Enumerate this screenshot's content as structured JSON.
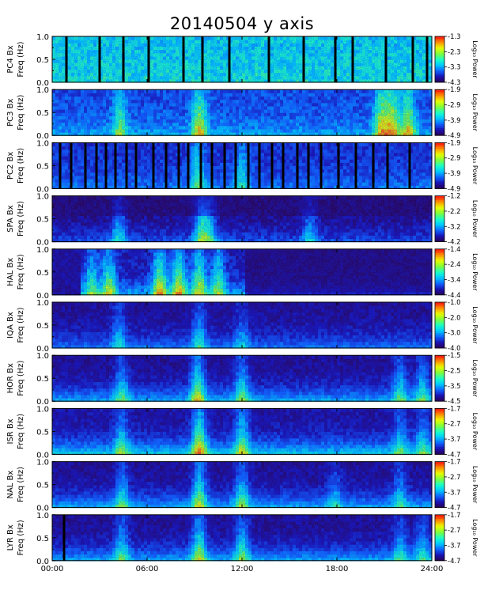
{
  "chart_data": {
    "type": "heatmap",
    "title": "20140504 y axis",
    "xlabel": "",
    "x_tick_labels": [
      "00:00",
      "06:00",
      "12:00",
      "18:00",
      "24:00"
    ],
    "x_ticks_hours": [
      0,
      6,
      12,
      18,
      24
    ],
    "xlim": [
      0,
      24
    ],
    "ylim": [
      0,
      1.0
    ],
    "y_tick_labels": [
      "0.0",
      "0.5",
      "1.0"
    ],
    "y_ticks": [
      0.0,
      0.5,
      1.0
    ],
    "colorbar_label": "Log₁₀ Power",
    "colormap": [
      "#2a0050",
      "#1a0fb0",
      "#1060ff",
      "#00c8ff",
      "#18ffc8",
      "#7cff3c",
      "#e8ff00",
      "#ff9000",
      "#ff1010"
    ],
    "panels": [
      {
        "station": "PC4",
        "ylabel_line1": "PC4 Bx",
        "ylabel_line2": "Freq (Hz)",
        "cbar_ticks": [
          "-1.3",
          "-2.3",
          "-3.3",
          "-4.3"
        ],
        "cbar_range": [
          -4.3,
          -1.3
        ],
        "gap_hours": [
          0.9,
          3.0,
          4.5,
          6.1,
          8.3,
          9.5,
          11.2,
          13.7,
          15.9,
          17.9,
          19.0,
          21.1,
          22.8,
          23.7
        ]
      },
      {
        "station": "PC3",
        "ylabel_line1": "PC3 Bx",
        "ylabel_line2": "Freq (Hz)",
        "cbar_ticks": [
          "-1.9",
          "-2.9",
          "-3.9",
          "-4.9"
        ],
        "cbar_range": [
          -4.9,
          -1.9
        ],
        "gap_hours": []
      },
      {
        "station": "PC2",
        "ylabel_line1": "PC2 Bx",
        "ylabel_line2": "Freq (Hz)",
        "cbar_ticks": [
          "-1.9",
          "-2.9",
          "-3.9",
          "-4.9"
        ],
        "cbar_range": [
          -4.9,
          -1.9
        ],
        "gap_hours": [
          0.5,
          1.2,
          2.1,
          2.8,
          3.4,
          4.0,
          4.7,
          5.3,
          6.4,
          7.2,
          8.0,
          8.6,
          9.4,
          10.1,
          10.9,
          11.6,
          12.4,
          13.1,
          13.9,
          14.6,
          15.5,
          16.2,
          17.0,
          18.1,
          19.2,
          20.3,
          21.2,
          22.6
        ]
      },
      {
        "station": "SPA",
        "ylabel_line1": "SPA Bx",
        "ylabel_line2": "Freq (Hz)",
        "cbar_ticks": [
          "-1.2",
          "-2.2",
          "-3.2",
          "-4.2"
        ],
        "cbar_range": [
          -4.2,
          -1.2
        ],
        "gap_hours": []
      },
      {
        "station": "HAL",
        "ylabel_line1": "HAL Bx",
        "ylabel_line2": "Freq (Hz)",
        "cbar_ticks": [
          "-1.4",
          "-2.4",
          "-3.4",
          "-4.4"
        ],
        "cbar_range": [
          -4.4,
          -1.4
        ],
        "gap_hours": []
      },
      {
        "station": "IQA",
        "ylabel_line1": "IQA Bx",
        "ylabel_line2": "Freq (Hz)",
        "cbar_ticks": [
          "-1.0",
          "-2.0",
          "-3.0",
          "-4.0"
        ],
        "cbar_range": [
          -4.0,
          -1.0
        ],
        "gap_hours": []
      },
      {
        "station": "HOR",
        "ylabel_line1": "HOR Bx",
        "ylabel_line2": "Freq (Hz)",
        "cbar_ticks": [
          "-1.5",
          "-2.5",
          "-3.5",
          "-4.5"
        ],
        "cbar_range": [
          -4.5,
          -1.5
        ],
        "gap_hours": []
      },
      {
        "station": "ISR",
        "ylabel_line1": "ISR Bx",
        "ylabel_line2": "Freq (Hz)",
        "cbar_ticks": [
          "-1.7",
          "-2.7",
          "-3.7",
          "-4.7"
        ],
        "cbar_range": [
          -4.7,
          -1.7
        ],
        "gap_hours": []
      },
      {
        "station": "NAL",
        "ylabel_line1": "NAL Bx",
        "ylabel_line2": "Freq (Hz)",
        "cbar_ticks": [
          "-1.7",
          "-2.7",
          "-3.7",
          "-4.7"
        ],
        "cbar_range": [
          -4.7,
          -1.7
        ],
        "gap_hours": []
      },
      {
        "station": "LYR",
        "ylabel_line1": "LYR Bx",
        "ylabel_line2": "Freq (Hz)",
        "cbar_ticks": [
          "-1.7",
          "-2.7",
          "-3.7",
          "-4.7"
        ],
        "cbar_range": [
          -4.7,
          -1.7
        ],
        "gap_hours": [
          0.75
        ]
      }
    ]
  }
}
